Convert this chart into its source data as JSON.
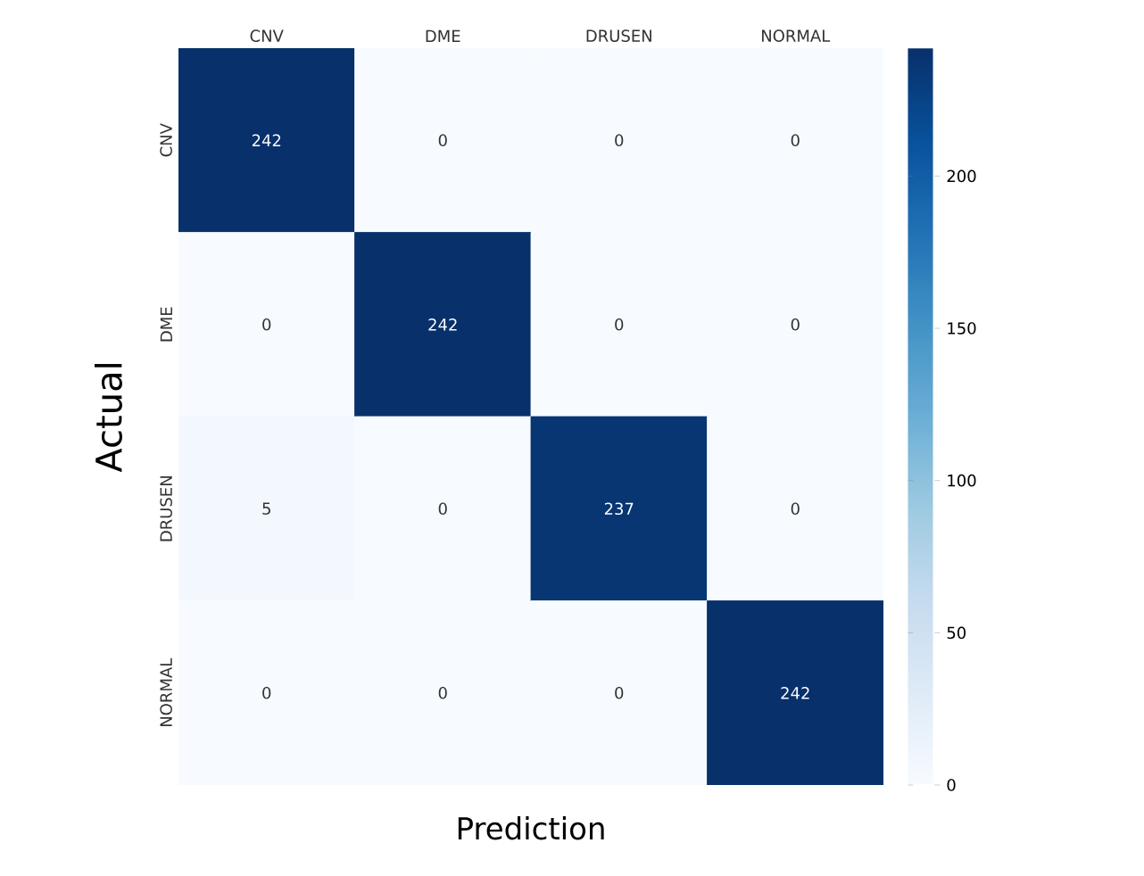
{
  "chart_data": {
    "type": "heatmap",
    "xlabel": "Prediction",
    "ylabel": "Actual",
    "categories": [
      "CNV",
      "DME",
      "DRUSEN",
      "NORMAL"
    ],
    "y_categories": [
      "CNV",
      "DME",
      "DRUSEN",
      "NORMAL"
    ],
    "cells": [
      [
        242,
        0,
        0,
        0
      ],
      [
        0,
        242,
        0,
        0
      ],
      [
        5,
        0,
        237,
        0
      ],
      [
        0,
        0,
        0,
        242
      ]
    ],
    "data_labels": true,
    "clim": [
      0,
      242
    ],
    "cticks": [
      0,
      50,
      100,
      150,
      200
    ]
  }
}
